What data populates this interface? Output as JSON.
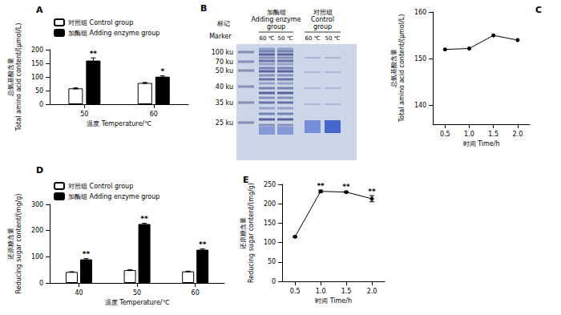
{
  "chart_data": [
    {
      "panel": "A",
      "type": "bar",
      "categories": [
        "50",
        "60"
      ],
      "x_label": "温度 Temperature/℃",
      "y_label": "总氨基酸含量\nTotal amino acid content/(μmol/L)",
      "ylim": [
        0,
        200
      ],
      "yticks": [
        0,
        50,
        100,
        150,
        200
      ],
      "grid": false,
      "legend": "upper left",
      "series": [
        {
          "name": "对照组 Control group",
          "color": "#ffffff",
          "values": [
            58,
            78
          ],
          "errors": [
            2,
            2
          ]
        },
        {
          "name": "加酶组 Adding enzyme group",
          "color": "#000000",
          "values": [
            160,
            101
          ],
          "errors": [
            10,
            3
          ],
          "annotations": [
            "**",
            "*"
          ]
        }
      ]
    },
    {
      "panel": "C",
      "type": "line",
      "categories": [
        "0.5",
        "1.0",
        "1.5",
        "2.0"
      ],
      "x_label": "时间 Time/h",
      "y_label": "总氨基酸含量\nTotal amino acid content/(μmol/L)",
      "ylim": [
        136,
        160
      ],
      "yticks": [
        140,
        150,
        160
      ],
      "grid": false,
      "values": [
        152,
        152.2,
        155,
        154
      ],
      "color": "#000000",
      "marker": "circle",
      "line_style": "solid"
    },
    {
      "panel": "D",
      "type": "bar",
      "categories": [
        "40",
        "50",
        "60"
      ],
      "x_label": "温度 Temperature/℃",
      "y_label": "还原糖含量\nReducing sugar content/(mg/g)",
      "ylim": [
        0,
        300
      ],
      "yticks": [
        0,
        100,
        200,
        300
      ],
      "grid": false,
      "legend": "upper left",
      "series": [
        {
          "name": "对照组 Control group",
          "color": "#ffffff",
          "values": [
            42,
            49,
            44
          ],
          "errors": [
            1,
            2,
            1
          ]
        },
        {
          "name": "加酶组 Adding enzyme group",
          "color": "#000000",
          "values": [
            90,
            225,
            127
          ],
          "errors": [
            3,
            3,
            3
          ],
          "annotations": [
            "**",
            "**",
            "**"
          ]
        }
      ]
    },
    {
      "panel": "E",
      "type": "line",
      "categories": [
        "0.5",
        "1.0",
        "1.5",
        "2.0"
      ],
      "x_label": "时间 Time/h",
      "y_label": "还原糖含量\nReducing sugar content/(mg/g)",
      "ylim": [
        0,
        250
      ],
      "yticks": [
        0,
        50,
        100,
        150,
        200,
        250
      ],
      "grid": false,
      "values": [
        115,
        232,
        230,
        213
      ],
      "errors": [
        2,
        3,
        2,
        8
      ],
      "annotations": [
        null,
        "**",
        "**",
        "**"
      ],
      "color": "#000000",
      "marker": "circle",
      "line_style": "solid"
    }
  ],
  "gel": {
    "panel": "B",
    "marker_lane": "标记\nMarker",
    "groups": [
      {
        "label": "加酶组\nAdding enzyme\ngroup",
        "lanes": [
          "60 ℃",
          "50 ℃"
        ]
      },
      {
        "label": "对照组\nControl\ngroup",
        "lanes": [
          "60 ℃",
          "50 ℃"
        ]
      }
    ],
    "marker_labels": [
      "100 ku",
      "70 ku",
      "50 ku",
      "40 ku",
      "35 ku",
      "25 ku"
    ]
  }
}
